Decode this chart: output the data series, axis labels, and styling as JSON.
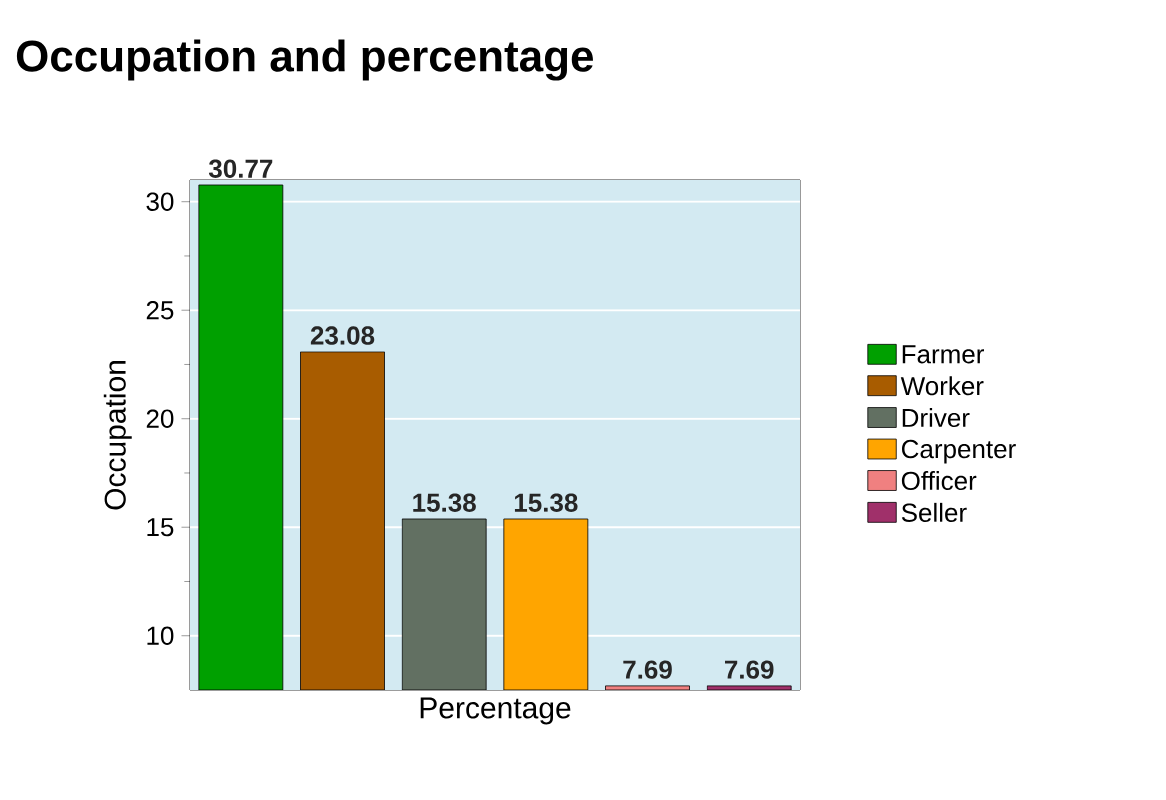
{
  "chart_data": {
    "type": "bar",
    "title": "Occupation and percentage",
    "xlabel": "Percentage",
    "ylabel": "Occupation",
    "categories": [
      null,
      null,
      null,
      null,
      null,
      null
    ],
    "stacked": true,
    "series": [
      {
        "name": "Farmer",
        "color": "#00a000",
        "values": [
          30.77,
          null,
          null,
          null,
          null,
          null
        ]
      },
      {
        "name": "Worker",
        "color": "#a85c00",
        "values": [
          null,
          23.08,
          null,
          null,
          null,
          null
        ]
      },
      {
        "name": "Driver",
        "color": "#627062",
        "values": [
          null,
          null,
          15.38,
          null,
          null,
          null
        ]
      },
      {
        "name": "Carpenter",
        "color": "#ffa500",
        "values": [
          null,
          null,
          null,
          15.38,
          null,
          null
        ]
      },
      {
        "name": "Officer",
        "color": "#f08080",
        "values": [
          null,
          null,
          null,
          null,
          7.69,
          null
        ]
      },
      {
        "name": "Seller",
        "color": "#a0306a",
        "values": [
          null,
          null,
          null,
          null,
          null,
          7.69
        ]
      }
    ],
    "ylim": [
      7.5,
      31
    ],
    "yticks": [
      10,
      15,
      20,
      25,
      30
    ],
    "grid": "y",
    "legend": "right",
    "data_labels": true,
    "tick_labels": "y"
  }
}
